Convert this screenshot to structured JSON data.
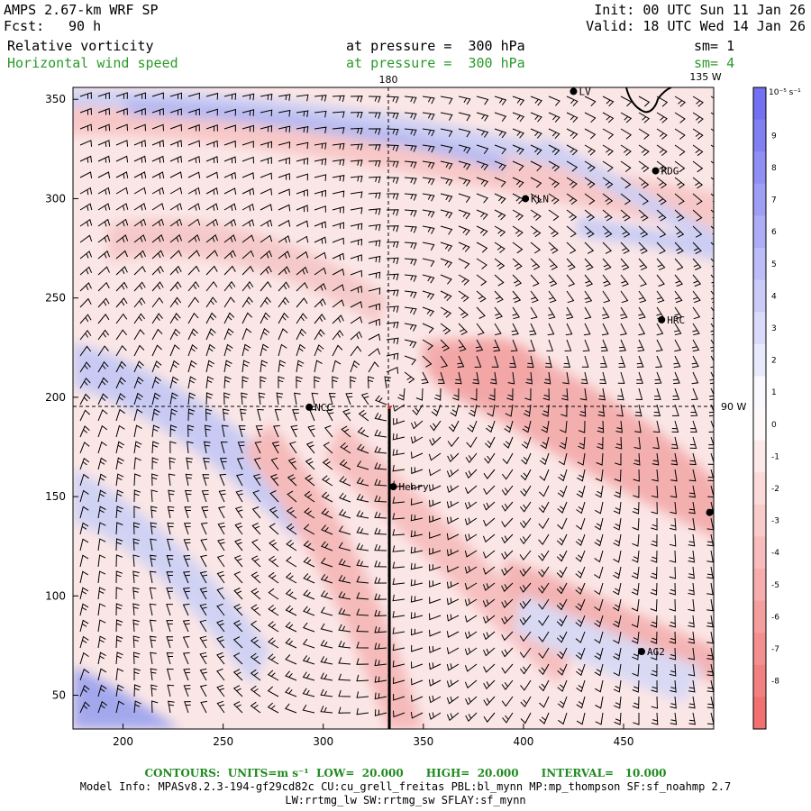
{
  "header": {
    "model": "AMPS 2.67-km WRF SP",
    "fcst_label": "Fcst:",
    "fcst_value": "90 h",
    "init": "Init: 00 UTC Sun 11 Jan 26",
    "valid": "Valid: 18 UTC Wed 14 Jan 26",
    "field1": {
      "name": "Relative vorticity",
      "level": "at pressure =  300 hPa",
      "sm": "sm= 1",
      "color": "#000000"
    },
    "field2": {
      "name": "Horizontal wind speed",
      "level": "at pressure =  300 hPa",
      "sm": "sm= 4",
      "color": "#2a9a2a"
    }
  },
  "map": {
    "x_ticks": [
      "200",
      "250",
      "300",
      "350",
      "400",
      "450"
    ],
    "y_ticks": [
      "50",
      "100",
      "150",
      "200",
      "250",
      "300",
      "350"
    ],
    "x_range": [
      175,
      495
    ],
    "y_range": [
      33,
      356
    ],
    "meridian_labels": {
      "top_180": "180",
      "top_135w": "135 W",
      "right_90w": "90 W"
    },
    "stations": [
      {
        "name": "LV",
        "x": 425,
        "y": 354
      },
      {
        "name": "RDG",
        "x": 466,
        "y": 314
      },
      {
        "name": "KLN",
        "x": 401,
        "y": 300
      },
      {
        "name": "HRC",
        "x": 469,
        "y": 239
      },
      {
        "name": "NCC",
        "x": 293,
        "y": 195
      },
      {
        "name": "Henry",
        "x": 335,
        "y": 155
      },
      {
        "name": "AG2",
        "x": 459,
        "y": 72
      },
      {
        "name": "",
        "x": 493,
        "y": 142
      }
    ],
    "crosshair": {
      "x": 333,
      "y": 195
    },
    "section_line": {
      "x": 333,
      "y_top": 195,
      "y_bottom": 33
    }
  },
  "colorbar": {
    "units": "10⁻⁵ s⁻¹",
    "labels": [
      "9",
      "8",
      "7",
      "6",
      "5",
      "4",
      "3",
      "2",
      "1",
      "0",
      "-1",
      "-2",
      "-3",
      "-4",
      "-5",
      "-6",
      "-7",
      "-8"
    ],
    "colors": {
      "pos_max": "#6a6af0",
      "neutral": "#ffffff",
      "neg_max": "#f06a6a"
    }
  },
  "footer": {
    "contours": "CONTOURS:  UNITS=m s⁻¹  LOW=  20.000      HIGH=  20.000      INTERVAL=   10.000",
    "model_info": "Model Info: MPASv8.2.3-194-gf29cd82c CU:cu_grell_freitas PBL:bl_mynn MP:mp_thompson SF:sf_noahmp 2.7",
    "model_info2": "LW:rrtmg_lw SW:rrtmg_sw SFLAY:sf_mynn"
  }
}
